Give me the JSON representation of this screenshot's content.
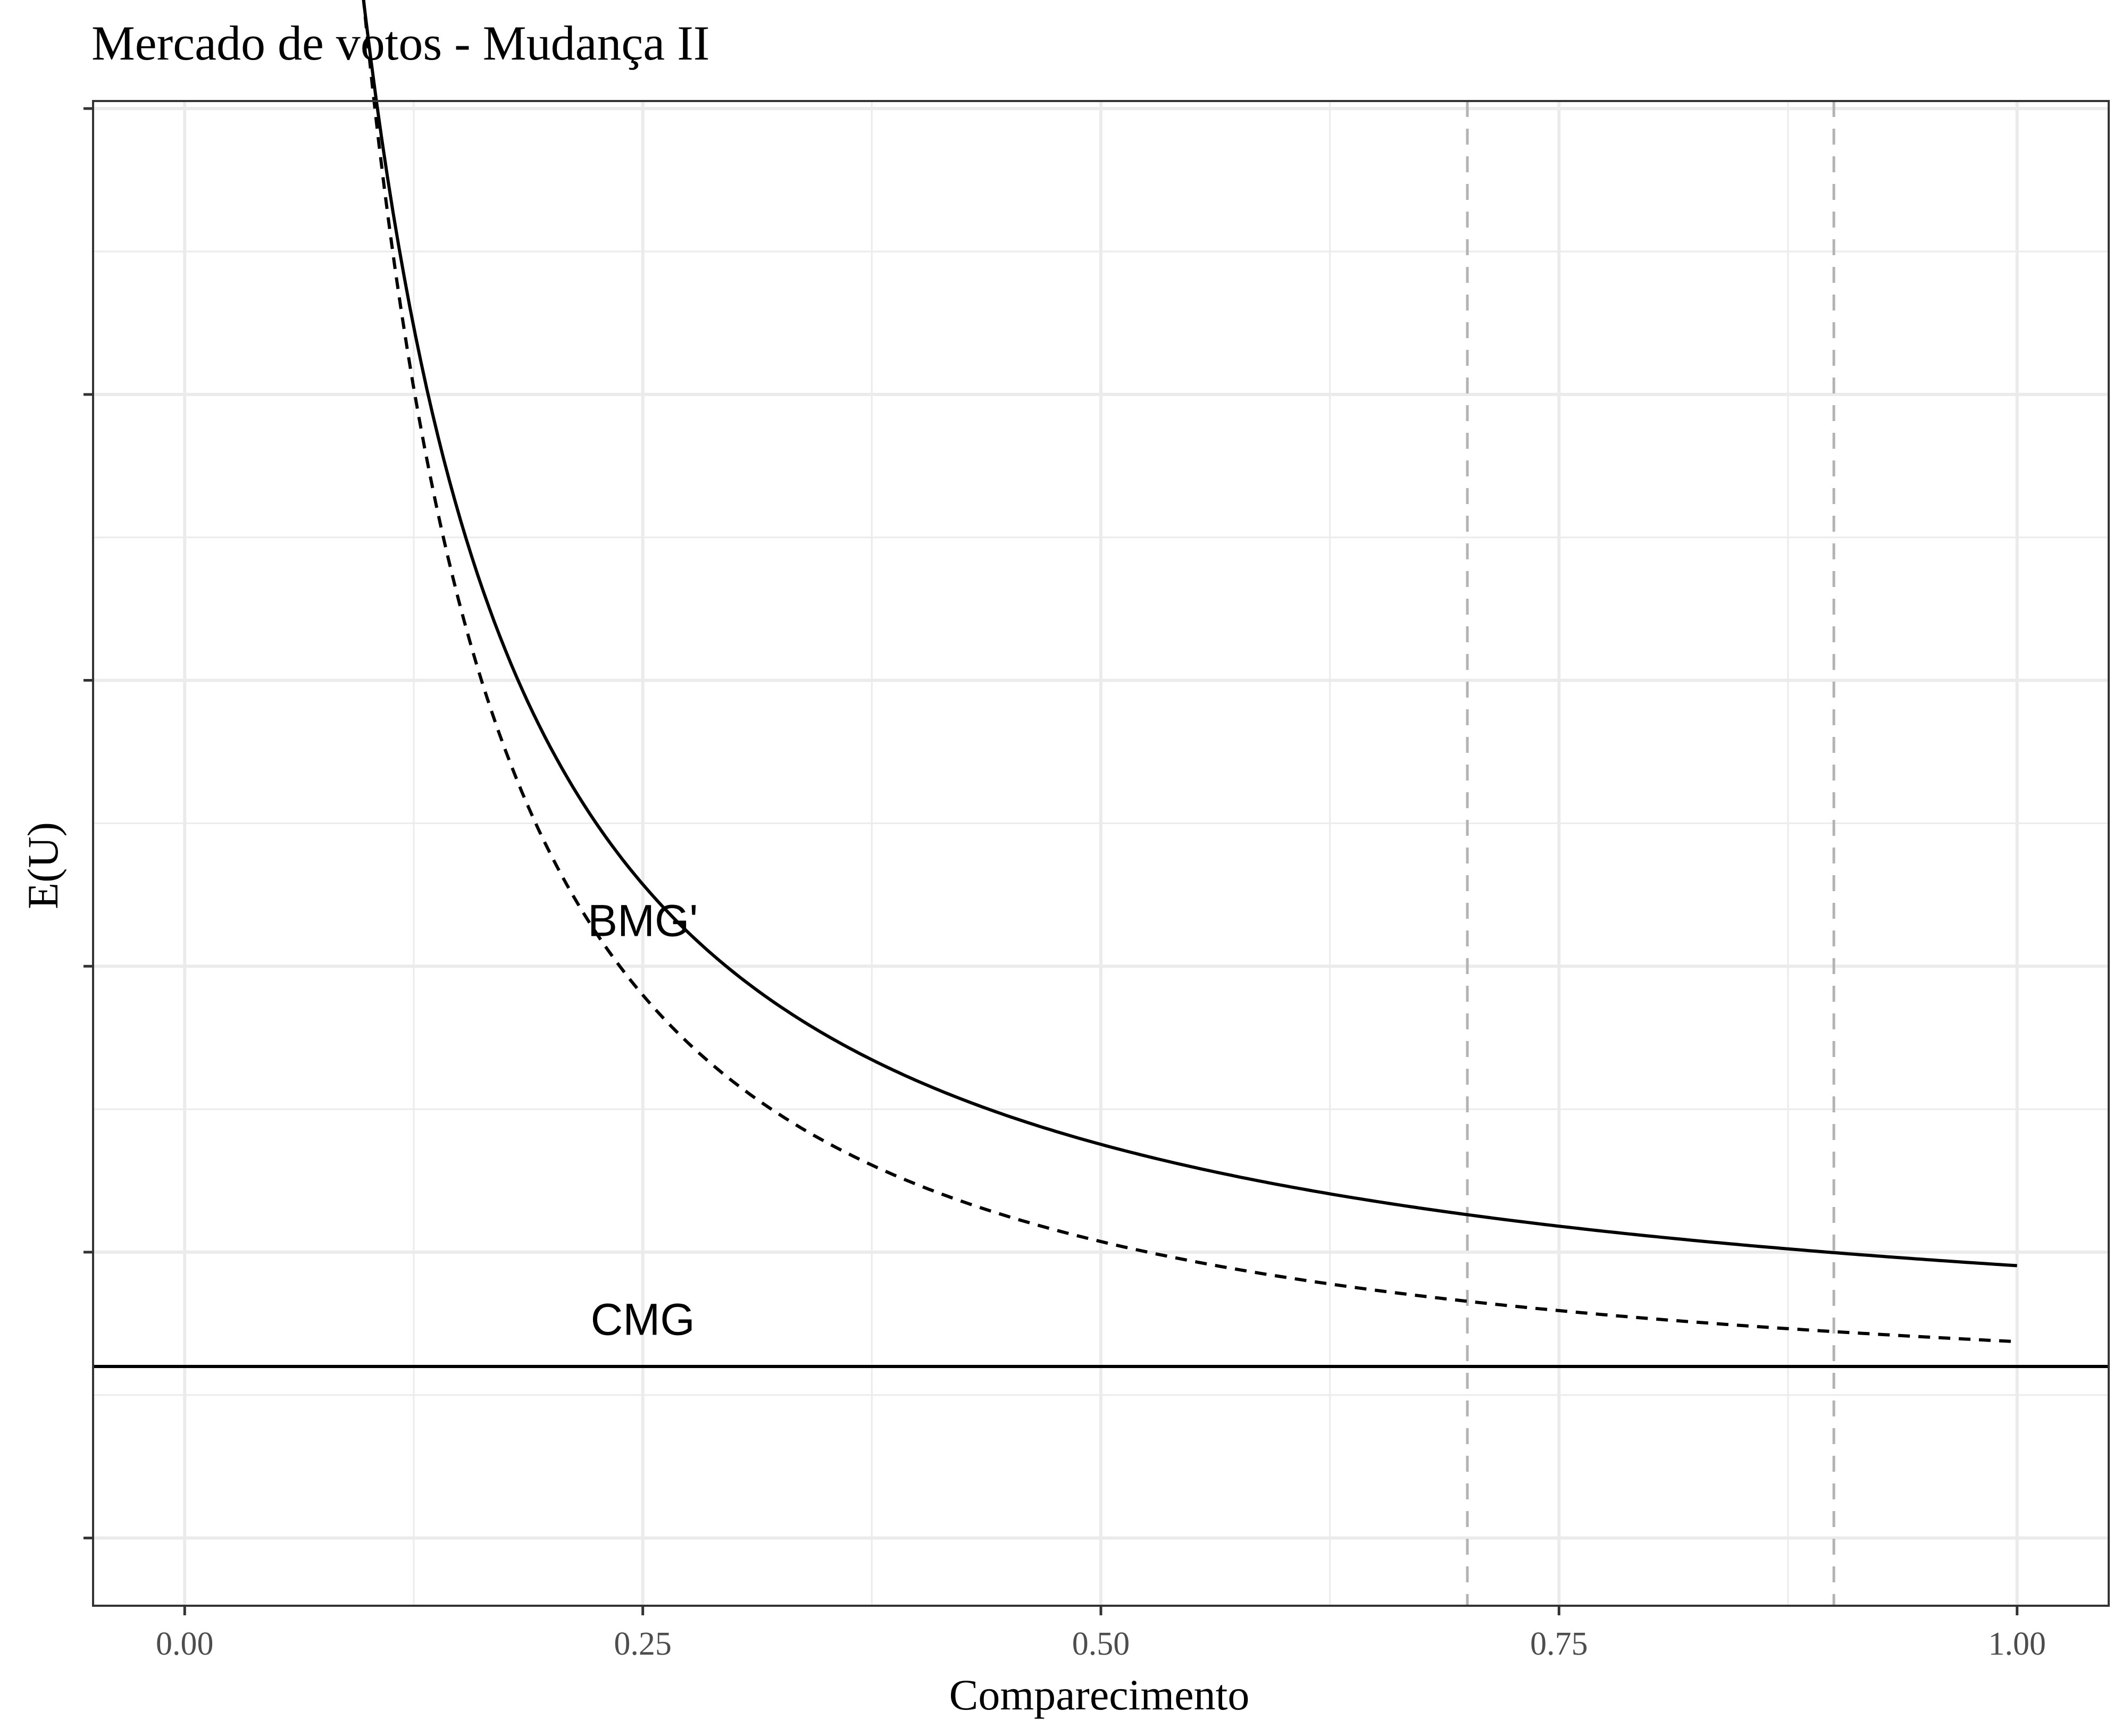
{
  "chart_data": {
    "type": "line",
    "title": "Mercado de votos - Mudança II",
    "xlabel": "Comparecimento",
    "ylabel": "E(U)",
    "xlim": [
      -0.05,
      1.05
    ],
    "ylim": [
      0,
      1
    ],
    "x_ticks": [
      0,
      0.25,
      0.5,
      0.75,
      1
    ],
    "x_tick_labels": [
      "0.00",
      "0.25",
      "0.50",
      "0.75",
      "1.00"
    ],
    "y_ticks": [
      0.045,
      0.235,
      0.425,
      0.615,
      0.805,
      0.995
    ],
    "y_tick_labels": [
      "",
      "",
      "",
      "",
      "",
      ""
    ],
    "grid": true,
    "series": [
      {
        "name": "BMG'",
        "style": "solid",
        "color": "#000000",
        "x_start": 0.08,
        "x_end": 1.0
      },
      {
        "name": "",
        "style": "dashed",
        "color": "#000000",
        "x_start": 0.062,
        "x_end": 1.0
      },
      {
        "name": "CMG",
        "style": "solid",
        "color": "#000000",
        "constant_y": 0.159
      }
    ],
    "vlines": [
      {
        "x": 0.7,
        "style": "dashed",
        "color": "#b3b3b3"
      },
      {
        "x": 0.9,
        "style": "dashed",
        "color": "#b3b3b3"
      }
    ],
    "annotations": [
      {
        "text": "BMG'",
        "x": 0.25,
        "y": 0.455
      },
      {
        "text": "CMG",
        "x": 0.25,
        "y": 0.19
      }
    ]
  }
}
